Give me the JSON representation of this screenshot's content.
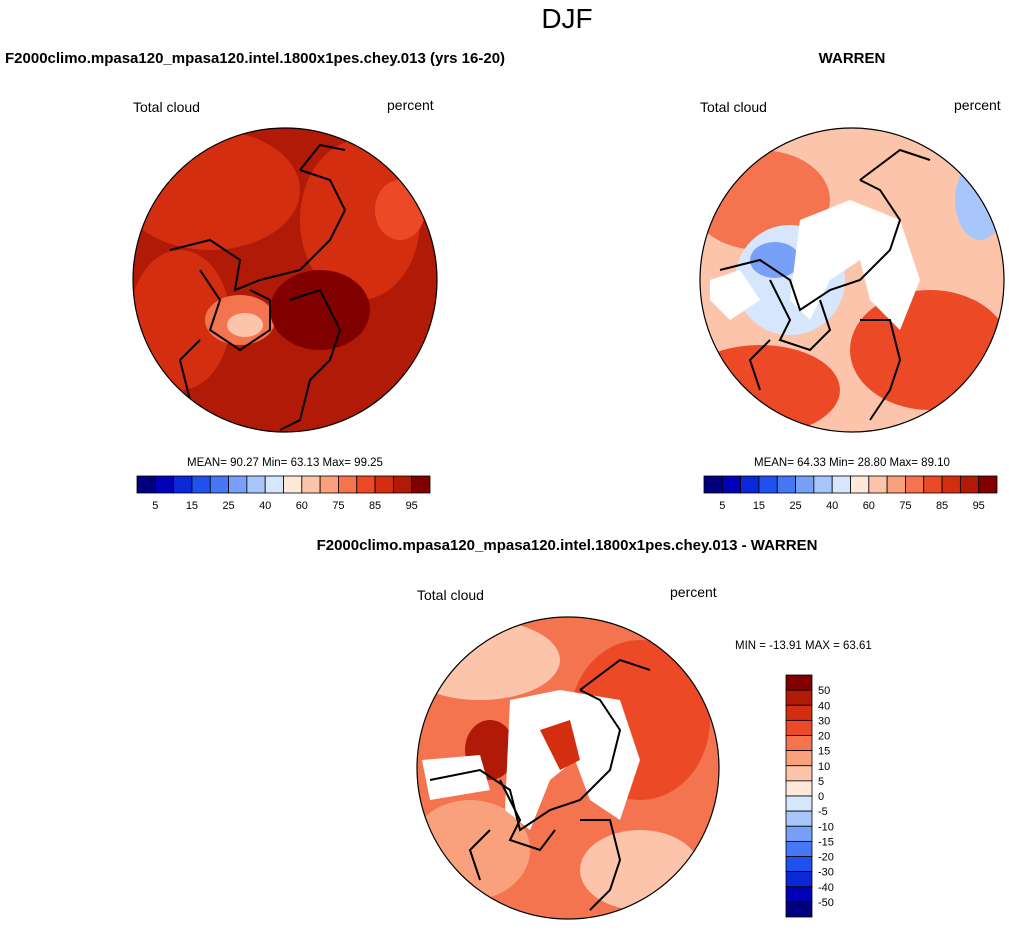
{
  "title": "DJF",
  "colors": [
    "#00007f",
    "#0000b8",
    "#0a28d8",
    "#2050ee",
    "#4678f5",
    "#78a0f8",
    "#a8c6fa",
    "#d6e6fc",
    "#fde8da",
    "#fcc5ab",
    "#f9a07c",
    "#f47450",
    "#ec4a26",
    "#d42e10",
    "#b01a06",
    "#800000"
  ],
  "panels": [
    {
      "title": "F2000climo.mpasa120_mpasa120.intel.1800x1pes.chey.013 (yrs 16-20)",
      "left_label": "Total cloud",
      "right_label": "percent",
      "stats": "MEAN=  90.27  Min=  63.13  Max=  99.25",
      "colorbar_labels": [
        "5",
        "15",
        "25",
        "40",
        "60",
        "75",
        "85",
        "95"
      ]
    },
    {
      "title": "WARREN",
      "left_label": "Total cloud",
      "right_label": "percent",
      "stats": "MEAN=  64.33  Min=  28.80  Max=  89.10",
      "colorbar_labels": [
        "5",
        "15",
        "25",
        "40",
        "60",
        "75",
        "85",
        "95"
      ]
    },
    {
      "title": "F2000climo.mpasa120_mpasa120.intel.1800x1pes.chey.013 - WARREN",
      "left_label": "Total cloud",
      "right_label": "percent",
      "stats": "MIN = -13.91 MAX =  63.61",
      "colorbar_labels": [
        50,
        40,
        30,
        20,
        15,
        10,
        5,
        0,
        -5,
        -10,
        -15,
        -20,
        -30,
        -40,
        -50
      ]
    }
  ]
}
